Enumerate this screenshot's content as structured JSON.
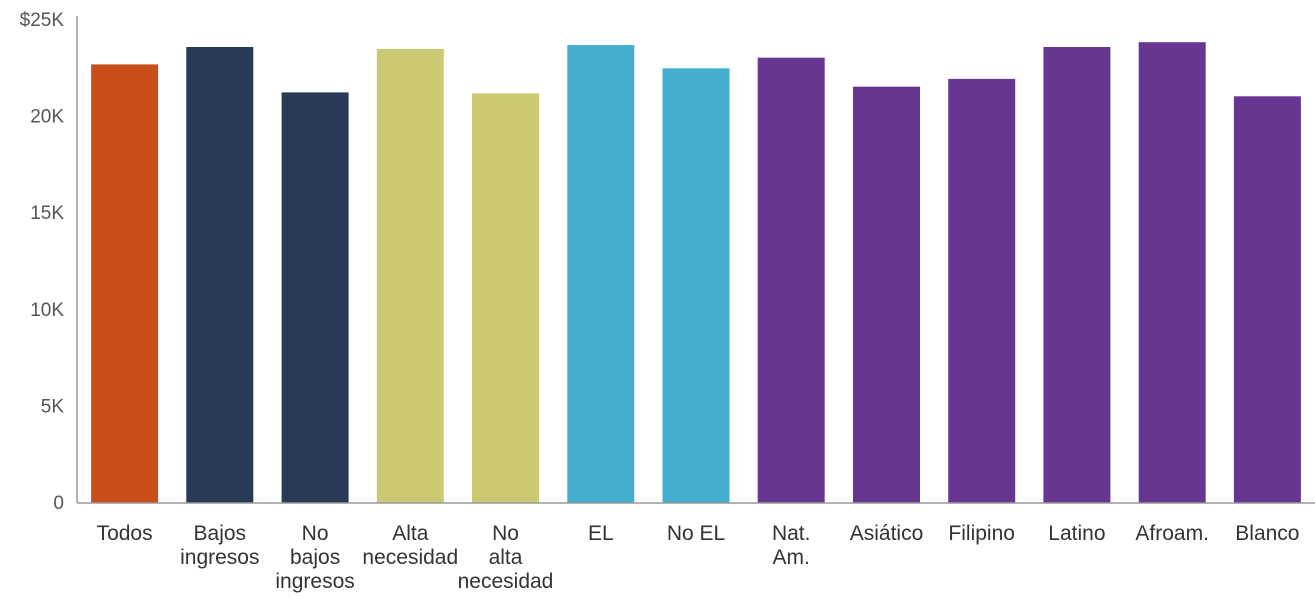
{
  "chart_data": {
    "type": "bar",
    "categories": [
      "Todos",
      "Bajos ingresos",
      "No bajos ingresos",
      "Alta necesidad",
      "No alta necesidad",
      "EL",
      "No EL",
      "Nat. Am.",
      "Asiático",
      "Filipino",
      "Latino",
      "Afroam.",
      "Blanco"
    ],
    "category_lines": [
      [
        "Todos"
      ],
      [
        "Bajos",
        "ingresos"
      ],
      [
        "No",
        "bajos",
        "ingresos"
      ],
      [
        "Alta",
        "necesidad"
      ],
      [
        "No",
        "alta",
        "necesidad"
      ],
      [
        "EL"
      ],
      [
        "No EL"
      ],
      [
        "Nat.",
        "Am."
      ],
      [
        "Asiático"
      ],
      [
        "Filipino"
      ],
      [
        "Latino"
      ],
      [
        "Afroam."
      ],
      [
        "Blanco"
      ]
    ],
    "values": [
      22700,
      23600,
      21250,
      23500,
      21200,
      23700,
      22500,
      23050,
      21550,
      21950,
      23600,
      23850,
      21050
    ],
    "colors": [
      "#c94e1a",
      "#283a55",
      "#283a55",
      "#cbca72",
      "#cbca72",
      "#42adcf",
      "#42adcf",
      "#663691",
      "#663691",
      "#663691",
      "#663691",
      "#663691",
      "#663691"
    ],
    "ylim": [
      0,
      25000
    ],
    "yticks": [
      0,
      5000,
      10000,
      15000,
      20000,
      25000
    ],
    "ytick_labels": [
      "0",
      "5K",
      "10K",
      "15K",
      "20K",
      "$25K"
    ],
    "title": "",
    "xlabel": "",
    "ylabel": "",
    "grid": false,
    "axis_color": "#999999"
  }
}
